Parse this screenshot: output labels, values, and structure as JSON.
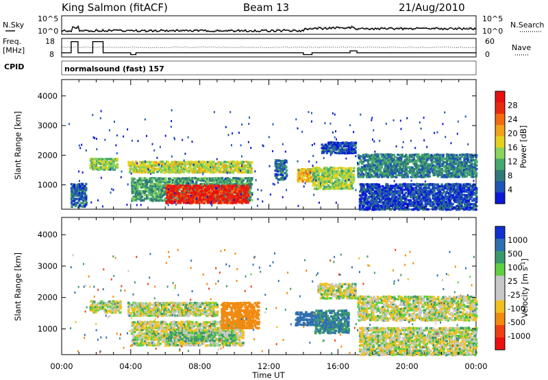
{
  "header": {
    "station": "King Salmon (fitACF)",
    "beam": "Beam 13",
    "date": "21/Aug/2010"
  },
  "noise_panel": {
    "left_label": "N.Sky",
    "right_label": "N.Search",
    "left_ticks": [
      "10^5",
      "10^0"
    ],
    "right_ticks": [
      "10^5",
      "10^0"
    ]
  },
  "freq_panel": {
    "left_label_top": "Freq.",
    "left_label_unit": "[MHz]",
    "left_ticks": [
      "18",
      "8"
    ],
    "right_label": "Nave",
    "right_ticks": [
      "60",
      "0"
    ]
  },
  "cpid": {
    "label": "CPID",
    "value": "normalsound (fast) 157"
  },
  "colors": {
    "power_scale": [
      "#0a1ad8",
      "#1f54b4",
      "#2f7a78",
      "#46a86e",
      "#8bd35a",
      "#e6d21c",
      "#f1a11a",
      "#f26a12",
      "#e82a10",
      "#e81010"
    ],
    "velocity_scale": [
      "#1030d0",
      "#2f6fb0",
      "#3a9a6a",
      "#60d040",
      "#c8c8c8",
      "#c8c8c8",
      "#f0c020",
      "#f08a10",
      "#f04010",
      "#ee1010"
    ]
  },
  "chart_data": [
    {
      "type": "heatmap",
      "name": "power",
      "ylabel": "Slant Range [km]",
      "xlabel": "",
      "xlim": [
        0,
        24
      ],
      "ylim": [
        180,
        4550
      ],
      "x_ticks": [
        "00:00",
        "04:00",
        "08:00",
        "12:00",
        "16:00",
        "20:00",
        "00:00"
      ],
      "y_ticks": [
        1000,
        2000,
        3000,
        4000
      ],
      "colorbar": {
        "label": "Power [dB]",
        "ticks": [
          "4",
          "8",
          "12",
          "16",
          "20",
          "24",
          "28"
        ],
        "range": [
          0,
          30
        ]
      },
      "echo_bands": [
        {
          "x": [
            1.6,
            3.2
          ],
          "y": [
            1550,
            1950
          ],
          "level": 13
        },
        {
          "x": [
            3.8,
            11.0
          ],
          "y": [
            1450,
            1850
          ],
          "level": 15
        },
        {
          "x": [
            4.0,
            11.0
          ],
          "y": [
            500,
            1300
          ],
          "level": 10
        },
        {
          "x": [
            6.0,
            10.8
          ],
          "y": [
            420,
            1050
          ],
          "level": 27
        },
        {
          "x": [
            12.3,
            13.0
          ],
          "y": [
            1200,
            1900
          ],
          "level": 6
        },
        {
          "x": [
            13.6,
            14.6
          ],
          "y": [
            1150,
            1600
          ],
          "level": 18
        },
        {
          "x": [
            14.5,
            16.9
          ],
          "y": [
            900,
            1650
          ],
          "level": 14
        },
        {
          "x": [
            15.0,
            17.0
          ],
          "y": [
            2100,
            2500
          ],
          "level": 4
        },
        {
          "x": [
            17.1,
            24.0
          ],
          "y": [
            1300,
            2100
          ],
          "level": 8
        },
        {
          "x": [
            17.2,
            24.0
          ],
          "y": [
            200,
            1100
          ],
          "level": 4
        },
        {
          "x": [
            0.5,
            1.4
          ],
          "y": [
            300,
            1100
          ],
          "level": 6
        }
      ]
    },
    {
      "type": "heatmap",
      "name": "velocity",
      "ylabel": "Slant Range [km]",
      "xlabel": "Time UT",
      "xlim": [
        0,
        24
      ],
      "ylim": [
        180,
        4550
      ],
      "x_ticks": [
        "00:00",
        "04:00",
        "08:00",
        "12:00",
        "16:00",
        "20:00",
        "00:00"
      ],
      "y_ticks": [
        1000,
        2000,
        3000,
        4000
      ],
      "colorbar": {
        "label": "Velocity [m s^-1]",
        "ticks": [
          "1000",
          "500",
          "100",
          "25",
          "-25",
          "-100",
          "-500",
          "-1000"
        ],
        "range": [
          -1000,
          1000
        ]
      },
      "echo_bands": [
        {
          "x": [
            1.6,
            3.4
          ],
          "y": [
            1550,
            1950
          ],
          "v": 0
        },
        {
          "x": [
            3.8,
            9.0
          ],
          "y": [
            1450,
            1900
          ],
          "v": 0
        },
        {
          "x": [
            4.0,
            10.5
          ],
          "y": [
            500,
            1300
          ],
          "v": 0
        },
        {
          "x": [
            6.0,
            10.0
          ],
          "y": [
            650,
            950
          ],
          "v": 60
        },
        {
          "x": [
            9.2,
            11.4
          ],
          "y": [
            1050,
            1900
          ],
          "v": -200
        },
        {
          "x": [
            13.5,
            14.6
          ],
          "y": [
            1150,
            1600
          ],
          "v": 400
        },
        {
          "x": [
            14.6,
            16.6
          ],
          "y": [
            900,
            1650
          ],
          "v": 300
        },
        {
          "x": [
            14.8,
            17.0
          ],
          "y": [
            2000,
            2500
          ],
          "v": 0
        },
        {
          "x": [
            17.1,
            24.0
          ],
          "y": [
            1300,
            2100
          ],
          "v": 0
        },
        {
          "x": [
            17.2,
            24.0
          ],
          "y": [
            200,
            1100
          ],
          "v": 0
        }
      ]
    }
  ]
}
